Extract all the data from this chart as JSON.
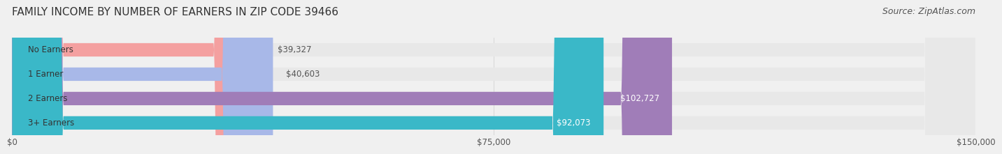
{
  "title": "FAMILY INCOME BY NUMBER OF EARNERS IN ZIP CODE 39466",
  "source": "Source: ZipAtlas.com",
  "categories": [
    "No Earners",
    "1 Earner",
    "2 Earners",
    "3+ Earners"
  ],
  "values": [
    39327,
    40603,
    102727,
    92073
  ],
  "bar_colors": [
    "#f4a0a0",
    "#a8b8e8",
    "#a07db8",
    "#3ab8c8"
  ],
  "label_colors": [
    "#555555",
    "#555555",
    "#ffffff",
    "#ffffff"
  ],
  "xlim": [
    0,
    150000
  ],
  "xticks": [
    0,
    75000,
    150000
  ],
  "xtick_labels": [
    "$0",
    "$75,000",
    "$150,000"
  ],
  "background_color": "#f0f0f0",
  "bar_background_color": "#e8e8e8",
  "title_fontsize": 11,
  "source_fontsize": 9,
  "bar_height": 0.55
}
